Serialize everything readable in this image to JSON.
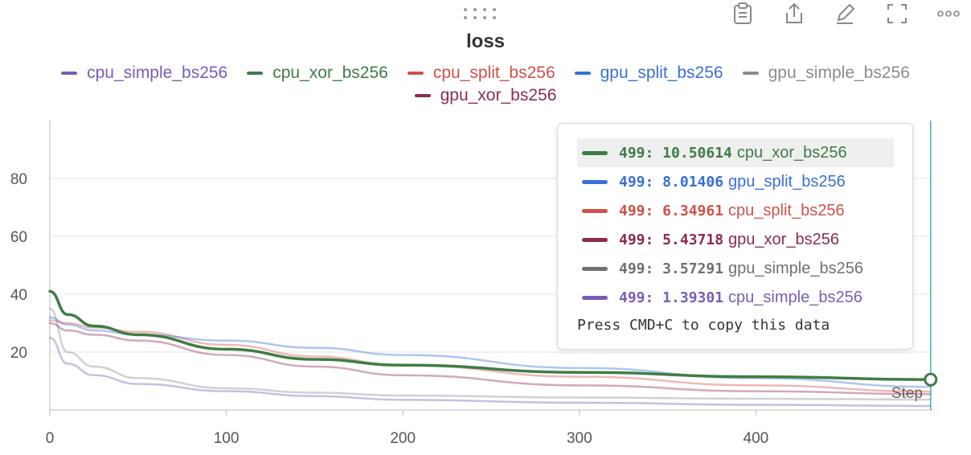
{
  "toolbar": {
    "icons": [
      "drag-handle-icon",
      "clipboard-icon",
      "share-icon",
      "edit-icon",
      "fullscreen-icon",
      "more-icon"
    ]
  },
  "chart_data": {
    "type": "line",
    "title": "loss",
    "xlabel": "",
    "ylabel": "",
    "xlim": [
      0,
      500
    ],
    "ylim": [
      0,
      100
    ],
    "xticks": [
      0,
      100,
      200,
      300,
      400
    ],
    "yticks": [
      20,
      40,
      60,
      80
    ],
    "grid": true,
    "legend_position": "top",
    "x_axis_annotation": "Step",
    "hover_step": 499,
    "series": [
      {
        "name": "cpu_simple_bs256",
        "color": "#7b5cb6",
        "x": [
          0,
          10,
          25,
          50,
          100,
          150,
          200,
          300,
          400,
          499
        ],
        "values": [
          25,
          16,
          12,
          9,
          6.5,
          4.8,
          3.5,
          2.5,
          1.8,
          1.39301
        ]
      },
      {
        "name": "cpu_xor_bs256",
        "color": "#3f7d45",
        "x": [
          0,
          10,
          25,
          50,
          100,
          150,
          200,
          300,
          400,
          499
        ],
        "values": [
          41,
          33,
          29,
          26,
          21,
          17.5,
          15.5,
          13,
          11.5,
          10.50614
        ]
      },
      {
        "name": "cpu_split_bs256",
        "color": "#d15049",
        "x": [
          0,
          10,
          25,
          50,
          100,
          150,
          200,
          300,
          400,
          499
        ],
        "values": [
          31,
          30,
          28.5,
          27,
          22.5,
          18.5,
          15.5,
          11.5,
          8.5,
          6.34961
        ]
      },
      {
        "name": "gpu_split_bs256",
        "color": "#3a6fd8",
        "x": [
          0,
          10,
          25,
          50,
          100,
          150,
          200,
          300,
          400,
          499
        ],
        "values": [
          32,
          29.5,
          27.5,
          26,
          24,
          21.5,
          19,
          14.5,
          11,
          8.01406
        ]
      },
      {
        "name": "gpu_simple_bs256",
        "color": "#8c8c8c",
        "x": [
          0,
          10,
          25,
          50,
          100,
          150,
          200,
          300,
          400,
          499
        ],
        "values": [
          35,
          20,
          15,
          11,
          7.5,
          6,
          5,
          4.3,
          3.9,
          3.57291
        ]
      },
      {
        "name": "gpu_xor_bs256",
        "color": "#8c2a52",
        "x": [
          0,
          10,
          25,
          50,
          100,
          150,
          200,
          300,
          400,
          499
        ],
        "values": [
          30,
          27.5,
          26,
          24,
          19,
          15,
          12,
          8.5,
          6.5,
          5.43718
        ]
      }
    ]
  },
  "tooltip": {
    "rows": [
      {
        "step": "499",
        "value": "10.50614",
        "name": "cpu_xor_bs256",
        "color": "#3f7d45",
        "highlight": true
      },
      {
        "step": "499",
        "value": "8.01406",
        "name": "gpu_split_bs256",
        "color": "#3a6fd8",
        "highlight": false
      },
      {
        "step": "499",
        "value": "6.34961",
        "name": "cpu_split_bs256",
        "color": "#d15049",
        "highlight": false
      },
      {
        "step": "499",
        "value": "5.43718",
        "name": "gpu_xor_bs256",
        "color": "#8c2a52",
        "highlight": false
      },
      {
        "step": "499",
        "value": "3.57291",
        "name": "gpu_simple_bs256",
        "color": "#707070",
        "highlight": false
      },
      {
        "step": "499",
        "value": "1.39301",
        "name": "cpu_simple_bs256",
        "color": "#7b5cb6",
        "highlight": false
      }
    ],
    "footer": "Press CMD+C to copy this data"
  }
}
